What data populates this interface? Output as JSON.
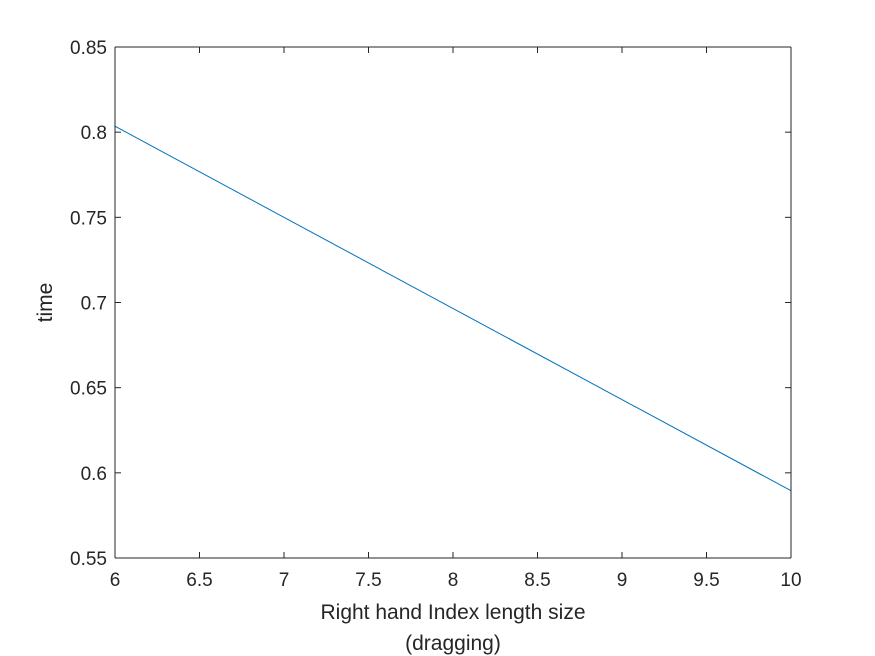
{
  "chart_data": {
    "type": "line",
    "title": "",
    "xlabel_lines": [
      "Right hand Index length size",
      "(dragging)"
    ],
    "ylabel": "time",
    "xlim": [
      6,
      10
    ],
    "ylim": [
      0.55,
      0.85
    ],
    "xticks": [
      6,
      6.5,
      7,
      7.5,
      8,
      8.5,
      9,
      9.5,
      10
    ],
    "xtick_labels": [
      "6",
      "6.5",
      "7",
      "7.5",
      "8",
      "8.5",
      "9",
      "9.5",
      "10"
    ],
    "yticks": [
      0.55,
      0.6,
      0.65,
      0.7,
      0.75,
      0.8,
      0.85
    ],
    "ytick_labels": [
      "0.55",
      "0.6",
      "0.65",
      "0.7",
      "0.75",
      "0.8",
      "0.85"
    ],
    "grid": false,
    "box": true,
    "series": [
      {
        "color": "#0072BD",
        "x": [
          6,
          10
        ],
        "y": [
          0.8035,
          0.5895
        ]
      }
    ],
    "colors": {
      "axis": "#262626",
      "line": "#0072BD",
      "background": "#ffffff"
    }
  }
}
